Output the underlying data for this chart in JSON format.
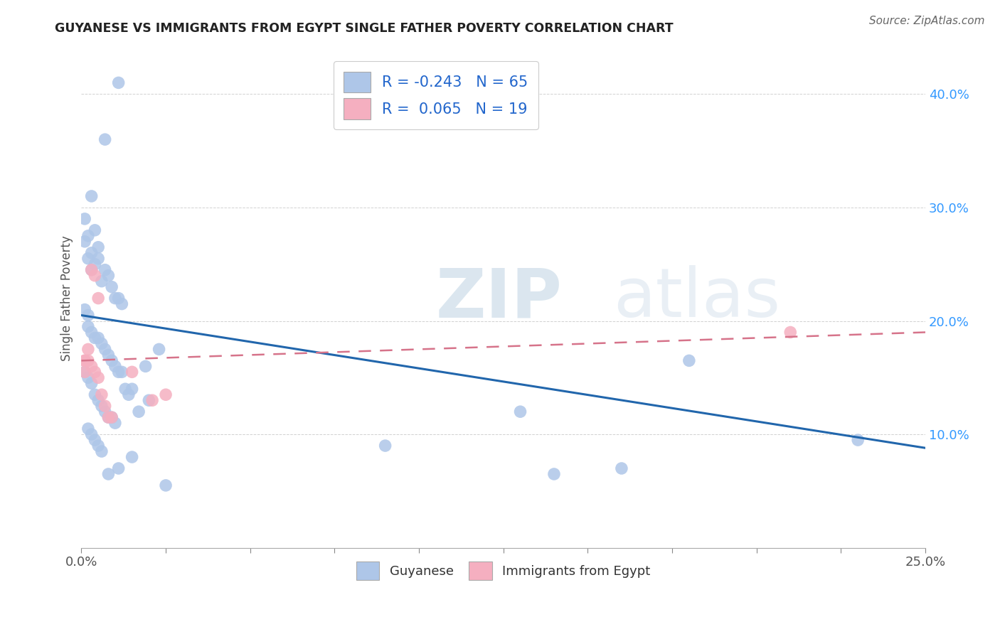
{
  "title": "GUYANESE VS IMMIGRANTS FROM EGYPT SINGLE FATHER POVERTY CORRELATION CHART",
  "source": "Source: ZipAtlas.com",
  "ylabel": "Single Father Poverty",
  "xlim": [
    0.0,
    0.25
  ],
  "ylim": [
    0.0,
    0.44
  ],
  "guyanese_R": -0.243,
  "guyanese_N": 65,
  "egypt_R": 0.065,
  "egypt_N": 19,
  "guyanese_color": "#aec6e8",
  "egypt_color": "#f5afc0",
  "guyanese_line_color": "#2166ac",
  "egypt_line_color": "#d6738a",
  "watermark_color": "#d0dce8",
  "guyanese_line_x": [
    0.0,
    0.25
  ],
  "guyanese_line_y": [
    0.205,
    0.088
  ],
  "egypt_line_x": [
    0.0,
    0.25
  ],
  "egypt_line_y": [
    0.165,
    0.19
  ],
  "guyanese_x": [
    0.011,
    0.007,
    0.003,
    0.004,
    0.005,
    0.001,
    0.001,
    0.002,
    0.002,
    0.003,
    0.003,
    0.004,
    0.005,
    0.006,
    0.007,
    0.008,
    0.009,
    0.01,
    0.011,
    0.012,
    0.001,
    0.002,
    0.002,
    0.003,
    0.004,
    0.005,
    0.006,
    0.007,
    0.008,
    0.009,
    0.01,
    0.011,
    0.012,
    0.013,
    0.014,
    0.001,
    0.002,
    0.003,
    0.004,
    0.005,
    0.006,
    0.007,
    0.008,
    0.009,
    0.01,
    0.002,
    0.003,
    0.004,
    0.005,
    0.006,
    0.023,
    0.015,
    0.017,
    0.02,
    0.13,
    0.09,
    0.18,
    0.23,
    0.14,
    0.16,
    0.019,
    0.015,
    0.011,
    0.008,
    0.025
  ],
  "guyanese_y": [
    0.41,
    0.36,
    0.31,
    0.28,
    0.265,
    0.29,
    0.27,
    0.275,
    0.255,
    0.26,
    0.245,
    0.25,
    0.255,
    0.235,
    0.245,
    0.24,
    0.23,
    0.22,
    0.22,
    0.215,
    0.21,
    0.205,
    0.195,
    0.19,
    0.185,
    0.185,
    0.18,
    0.175,
    0.17,
    0.165,
    0.16,
    0.155,
    0.155,
    0.14,
    0.135,
    0.155,
    0.15,
    0.145,
    0.135,
    0.13,
    0.125,
    0.12,
    0.115,
    0.115,
    0.11,
    0.105,
    0.1,
    0.095,
    0.09,
    0.085,
    0.175,
    0.14,
    0.12,
    0.13,
    0.12,
    0.09,
    0.165,
    0.095,
    0.065,
    0.07,
    0.16,
    0.08,
    0.07,
    0.065,
    0.055
  ],
  "egypt_x": [
    0.001,
    0.002,
    0.003,
    0.004,
    0.005,
    0.001,
    0.002,
    0.003,
    0.004,
    0.005,
    0.006,
    0.007,
    0.008,
    0.009,
    0.015,
    0.021,
    0.025,
    0.21,
    0.001
  ],
  "egypt_y": [
    0.165,
    0.175,
    0.245,
    0.24,
    0.22,
    0.155,
    0.165,
    0.16,
    0.155,
    0.15,
    0.135,
    0.125,
    0.115,
    0.115,
    0.155,
    0.13,
    0.135,
    0.19,
    0.165
  ]
}
